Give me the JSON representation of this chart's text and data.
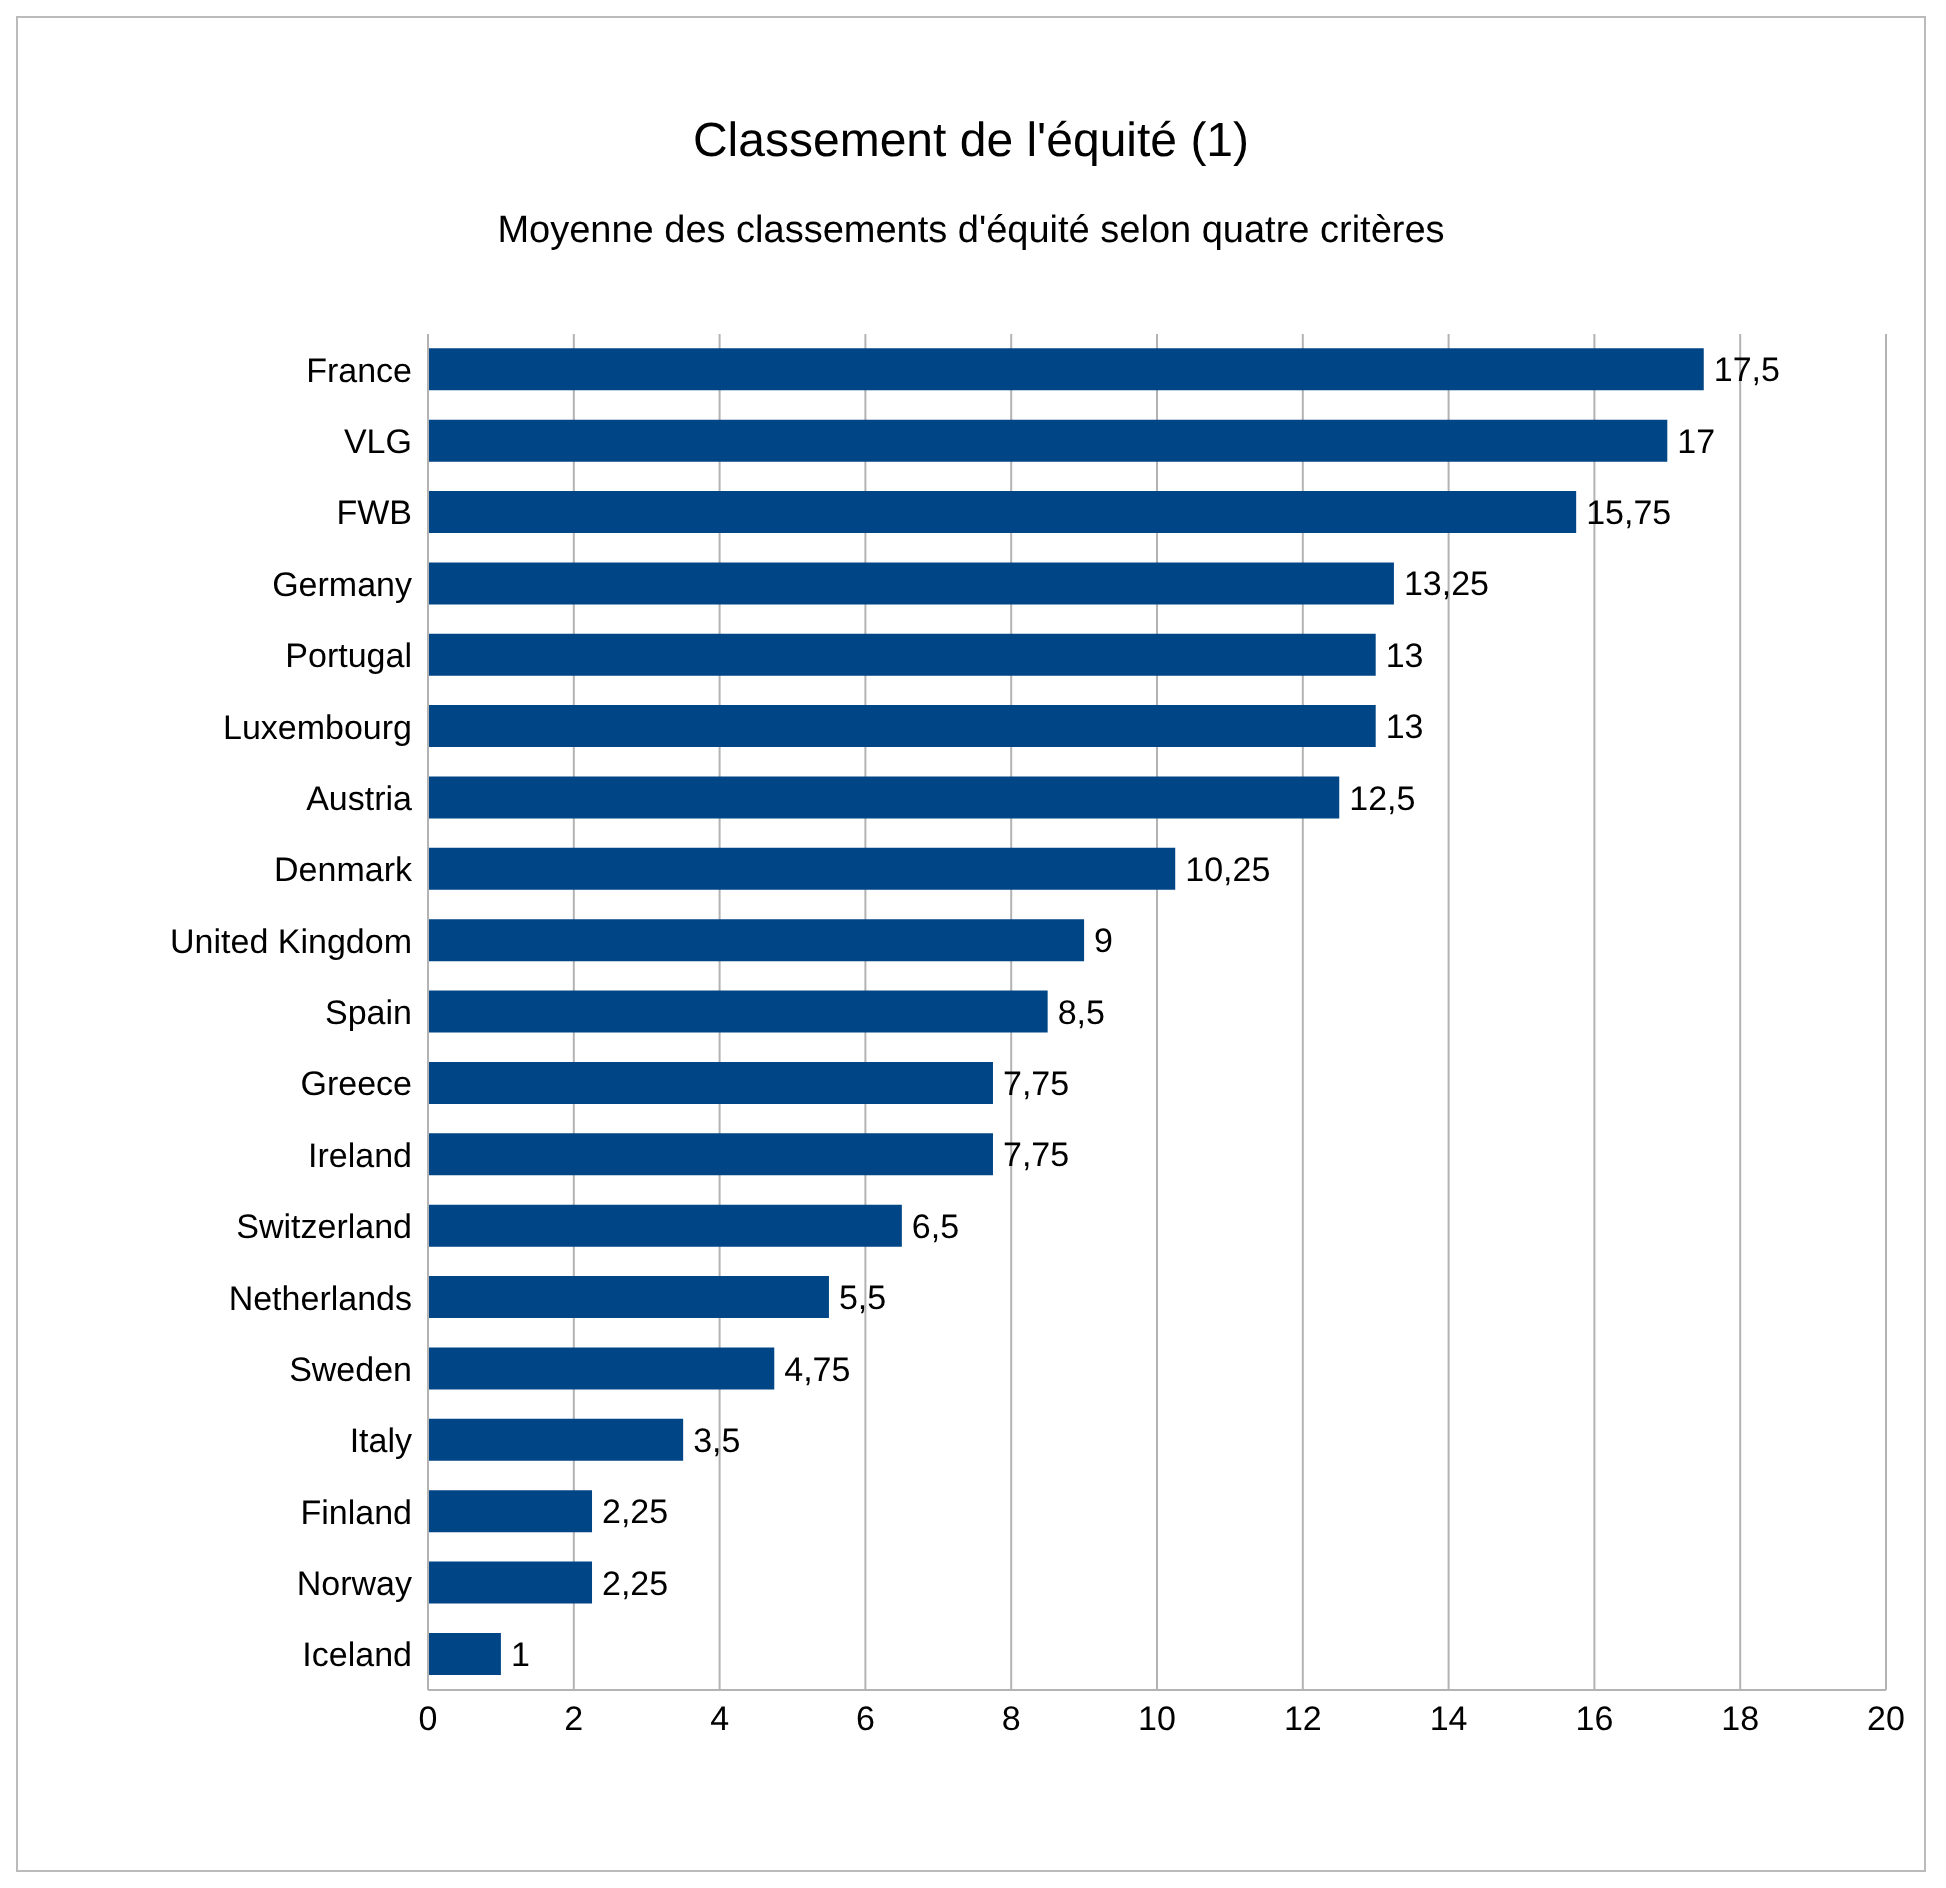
{
  "chart_data": {
    "type": "bar",
    "orientation": "horizontal",
    "title": "Classement de l'équité (1)",
    "subtitle": "Moyenne des classements d'équité selon quatre critères",
    "categories": [
      "France",
      "VLG",
      "FWB",
      "Germany",
      "Portugal",
      "Luxembourg",
      "Austria",
      "Denmark",
      "United Kingdom",
      "Spain",
      "Greece",
      "Ireland",
      "Switzerland",
      "Netherlands",
      "Sweden",
      "Italy",
      "Finland",
      "Norway",
      "Iceland"
    ],
    "values": [
      17.5,
      17,
      15.75,
      13.25,
      13,
      13,
      12.5,
      10.25,
      9,
      8.5,
      7.75,
      7.75,
      6.5,
      5.5,
      4.75,
      3.5,
      2.25,
      2.25,
      1
    ],
    "value_labels": [
      "17,5",
      "17",
      "15,75",
      "13,25",
      "13",
      "13",
      "12,5",
      "10,25",
      "9",
      "8,5",
      "7,75",
      "7,75",
      "6,5",
      "5,5",
      "4,75",
      "3,5",
      "2,25",
      "2,25",
      "1"
    ],
    "color": "#004586",
    "xlim": [
      0,
      20
    ],
    "xticks": [
      0,
      2,
      4,
      6,
      8,
      10,
      12,
      14,
      16,
      18,
      20
    ],
    "grid": "x"
  }
}
